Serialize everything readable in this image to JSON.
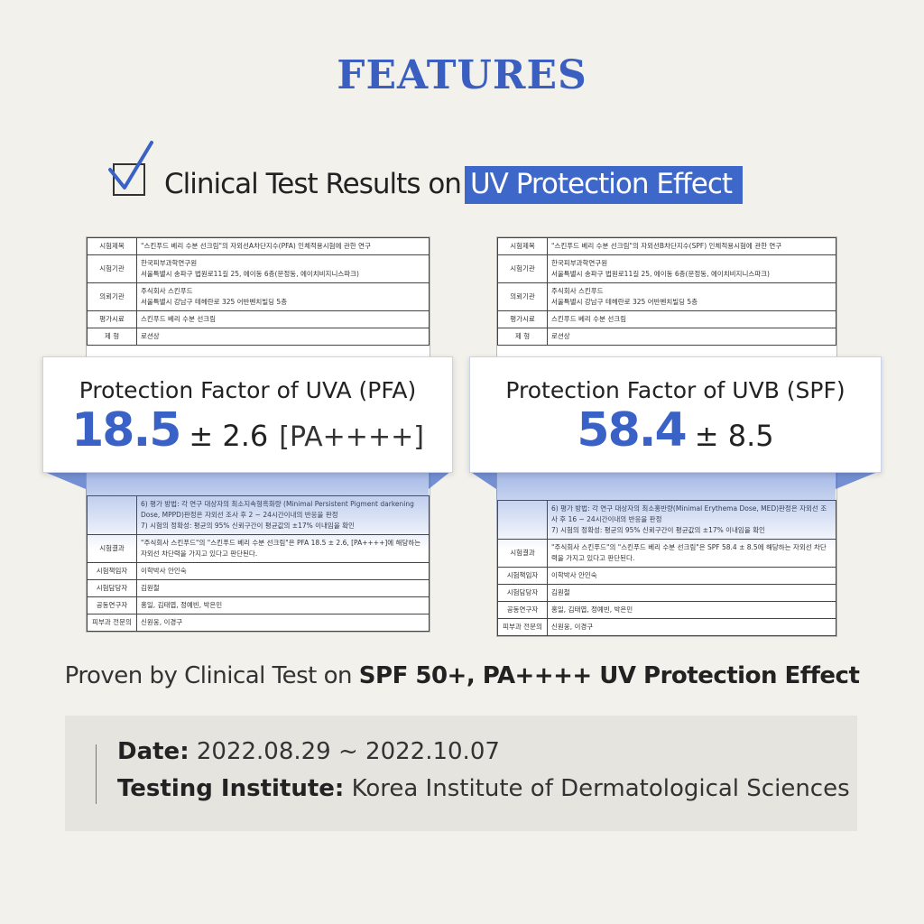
{
  "title": "FEATURES",
  "heading": {
    "text": "Clinical Test Results on",
    "highlight": "UV Protection Effect"
  },
  "docs": [
    {
      "top_rows": [
        {
          "label": "시험제목",
          "lines": [
            "\"스킨푸드 베리 수분 선크림\"의 자외선A차단지수(PFA) 인체적용시험에 관한 연구"
          ]
        },
        {
          "label": "시험기관",
          "lines": [
            "한국피부과학연구원",
            "서울특별시 송파구 법원로11길 25, 에이동 6층(문정동, 에이치비지니스파크)"
          ]
        },
        {
          "label": "의뢰기관",
          "lines": [
            "주식회사 스킨푸드",
            "서울특별시 강남구 테헤란로 325 어반벤치빌딩 5층"
          ]
        },
        {
          "label": "평가시료",
          "lines": [
            "스킨푸드 베리 수분 선크림"
          ]
        },
        {
          "label": "제 형",
          "lines": [
            "로션상"
          ]
        }
      ],
      "bottom_rows": [
        {
          "lines": [
            "6) 평가 방법: 각 연구 대상자의 최소지속형흑화량 (Minimal Persistent Pigment darkening Dose, MPPD)판정은 자외선 조사 후 2 ~ 24시간이내의 반응을 판정",
            "7) 시험의 정확성: 평균의 95% 신뢰구간이 평균값의 ±17% 이내임을 확인"
          ]
        },
        {
          "label": "시험결과",
          "lines": [
            "\"주식회사 스킨푸드\"의 \"스킨푸드 베리 수분 선크림\"은 PFA 18.5 ± 2.6, [PA++++]에 해당하는 자외선 차단력을 가지고 있다고 판단된다."
          ]
        },
        {
          "label": "시험책임자",
          "lines": [
            "이학박사 안인숙"
          ]
        },
        {
          "label": "시험담당자",
          "lines": [
            "김원철"
          ]
        },
        {
          "label": "공동연구자",
          "lines": [
            "홍일, 김태엽, 정예빈, 박은민"
          ]
        },
        {
          "label": "피부과 전문의",
          "lines": [
            "신원웅, 이경구"
          ]
        }
      ]
    },
    {
      "top_rows": [
        {
          "label": "시험제목",
          "lines": [
            "\"스킨푸드 베리 수분 선크림\"의 자외선B차단지수(SPF) 인체적용시험에 관한 연구"
          ]
        },
        {
          "label": "시험기관",
          "lines": [
            "한국피부과학연구원",
            "서울특별시 송파구 법원로11길 25, 에이동 6층(문정동, 에이치비지니스파크)"
          ]
        },
        {
          "label": "의뢰기관",
          "lines": [
            "주식회사 스킨푸드",
            "서울특별시 강남구 테헤란로 325 어반벤치빌딩 5층"
          ]
        },
        {
          "label": "평가시료",
          "lines": [
            "스킨푸드 베리 수분 선크림"
          ]
        },
        {
          "label": "제 형",
          "lines": [
            "로션상"
          ]
        }
      ],
      "bottom_rows": [
        {
          "lines": [
            "6) 평가 방법: 각 연구 대상자의 최소홍반량(Minimal Erythema Dose, MED)판정은 자외선 조사 후 16 ~ 24시간이내의 반응을 판정",
            "7) 시험의 정확성: 평균의 95% 신뢰구간이 평균값의 ±17% 이내임을 확인"
          ]
        },
        {
          "label": "시험결과",
          "lines": [
            "\"주식회사 스킨푸드\"의 \"스킨푸드 베리 수분 선크림\"은 SPF 58.4 ± 8.5에 해당하는 자외선 차단력을 가지고 있다고 판단된다."
          ]
        },
        {
          "label": "시험책임자",
          "lines": [
            "이학박사 안인숙"
          ]
        },
        {
          "label": "시험담당자",
          "lines": [
            "김원철"
          ]
        },
        {
          "label": "공동연구자",
          "lines": [
            "홍일, 김태엽, 정예빈, 박은민"
          ]
        },
        {
          "label": "피부과 전문의",
          "lines": [
            "신원웅, 이경구"
          ]
        }
      ]
    }
  ],
  "callouts": [
    {
      "heading": "Protection Factor of UVA (PFA)",
      "value": 18.5,
      "error": "± 2.6",
      "grade": "[PA++++]"
    },
    {
      "heading": "Protection Factor of UVB (SPF)",
      "value": 58.4,
      "error": "± 8.5"
    }
  ],
  "summary": {
    "text": "Proven by Clinical Test on",
    "bold": "SPF 50+, PA++++ UV Protection Effect"
  },
  "info": [
    {
      "label": "Date:",
      "value": "2022.08.29 ~ 2022.10.07"
    },
    {
      "label": "Testing Institute:",
      "value": "Korea Institute of Dermatological Sciences"
    }
  ]
}
